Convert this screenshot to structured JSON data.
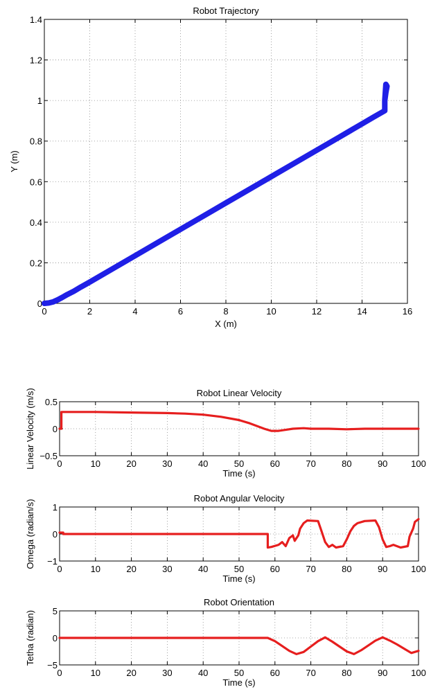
{
  "chart_data": [
    {
      "type": "line",
      "title": "Robot Trajectory",
      "xlabel": "X (m)",
      "ylabel": "Y (m)",
      "xlim": [
        0,
        16
      ],
      "ylim": [
        0,
        1.4
      ],
      "xticks": [
        0,
        2,
        4,
        6,
        8,
        10,
        12,
        14,
        16
      ],
      "yticks": [
        0,
        0.2,
        0.4,
        0.6,
        0.8,
        1,
        1.2,
        1.4
      ],
      "grid": true,
      "color": "#1f1fe6",
      "series": [
        {
          "x": [
            0,
            0.2,
            0.4,
            0.6,
            0.8,
            1.0,
            1.3,
            1.6,
            2,
            3,
            4,
            5,
            6,
            7,
            8,
            9,
            10,
            11,
            12,
            13,
            14,
            14.5,
            15,
            15,
            15.05,
            15.1,
            15.05,
            15
          ],
          "y": [
            0,
            0.002,
            0.008,
            0.018,
            0.03,
            0.043,
            0.06,
            0.08,
            0.105,
            0.17,
            0.235,
            0.3,
            0.365,
            0.43,
            0.495,
            0.56,
            0.625,
            0.69,
            0.755,
            0.82,
            0.885,
            0.918,
            0.95,
            1.0,
            1.04,
            1.07,
            1.08,
            1.0
          ]
        }
      ]
    },
    {
      "type": "line",
      "title": "Robot Linear Velocity",
      "xlabel": "Time (s)",
      "ylabel": "Linear Velocity (m/s)",
      "xlim": [
        0,
        100
      ],
      "ylim": [
        -0.5,
        0.5
      ],
      "xticks": [
        0,
        10,
        20,
        30,
        40,
        50,
        60,
        70,
        80,
        90,
        100
      ],
      "yticks": [
        -0.5,
        0,
        0.5
      ],
      "grid": true,
      "color": "#e61e1e",
      "series": [
        {
          "x": [
            0,
            0.5,
            0.5,
            10,
            20,
            30,
            35,
            40,
            45,
            50,
            53,
            55,
            57,
            59,
            61,
            63,
            65,
            68,
            70,
            75,
            80,
            85,
            90,
            95,
            100
          ],
          "y": [
            0,
            0,
            0.31,
            0.31,
            0.3,
            0.29,
            0.28,
            0.26,
            0.22,
            0.16,
            0.1,
            0.05,
            0.0,
            -0.04,
            -0.04,
            -0.02,
            0.0,
            0.01,
            0.0,
            0.0,
            -0.01,
            0.0,
            0.0,
            0.0,
            0.0
          ]
        }
      ]
    },
    {
      "type": "line",
      "title": "Robot Angular Velocity",
      "xlabel": "Time (s)",
      "ylabel": "Omega (radian/s)",
      "xlim": [
        0,
        100
      ],
      "ylim": [
        -1,
        1
      ],
      "xticks": [
        0,
        10,
        20,
        30,
        40,
        50,
        60,
        70,
        80,
        90,
        100
      ],
      "yticks": [
        -1,
        0,
        1
      ],
      "grid": true,
      "color": "#e61e1e",
      "series": [
        {
          "x": [
            0,
            1,
            1,
            58,
            58,
            59,
            61,
            62,
            63,
            64,
            65,
            65.5,
            66.5,
            67,
            68,
            69,
            72,
            73,
            74,
            75,
            76,
            77,
            79,
            80,
            81,
            82,
            83,
            85,
            88,
            89,
            90,
            91,
            92,
            93,
            95,
            97,
            97.5,
            98.5,
            99,
            100
          ],
          "y": [
            0.05,
            0.05,
            0,
            0,
            -0.5,
            -0.48,
            -0.4,
            -0.3,
            -0.45,
            -0.15,
            -0.05,
            -0.25,
            -0.05,
            0.2,
            0.4,
            0.5,
            0.48,
            0.1,
            -0.3,
            -0.48,
            -0.4,
            -0.5,
            -0.45,
            -0.2,
            0.1,
            0.3,
            0.4,
            0.48,
            0.5,
            0.25,
            -0.2,
            -0.48,
            -0.45,
            -0.4,
            -0.5,
            -0.45,
            -0.1,
            0.2,
            0.45,
            0.55
          ]
        }
      ]
    },
    {
      "type": "line",
      "title": "Robot Orientation",
      "xlabel": "Time (s)",
      "ylabel": "Tetha (radian)",
      "xlim": [
        0,
        100
      ],
      "ylim": [
        -5,
        5
      ],
      "xticks": [
        0,
        10,
        20,
        30,
        40,
        50,
        60,
        70,
        80,
        90,
        100
      ],
      "yticks": [
        -5,
        0,
        5
      ],
      "grid": true,
      "color": "#e61e1e",
      "series": [
        {
          "x": [
            0,
            58,
            60,
            62,
            64,
            66,
            68,
            70,
            72,
            74,
            76,
            78,
            80,
            82,
            84,
            86,
            88,
            90,
            92,
            94,
            96,
            98,
            100
          ],
          "y": [
            0,
            0,
            -0.6,
            -1.5,
            -2.4,
            -3.0,
            -2.6,
            -1.6,
            -0.6,
            0.1,
            -0.7,
            -1.6,
            -2.5,
            -3.0,
            -2.3,
            -1.4,
            -0.5,
            0.1,
            -0.5,
            -1.2,
            -2.0,
            -2.8,
            -2.4
          ]
        }
      ]
    }
  ]
}
